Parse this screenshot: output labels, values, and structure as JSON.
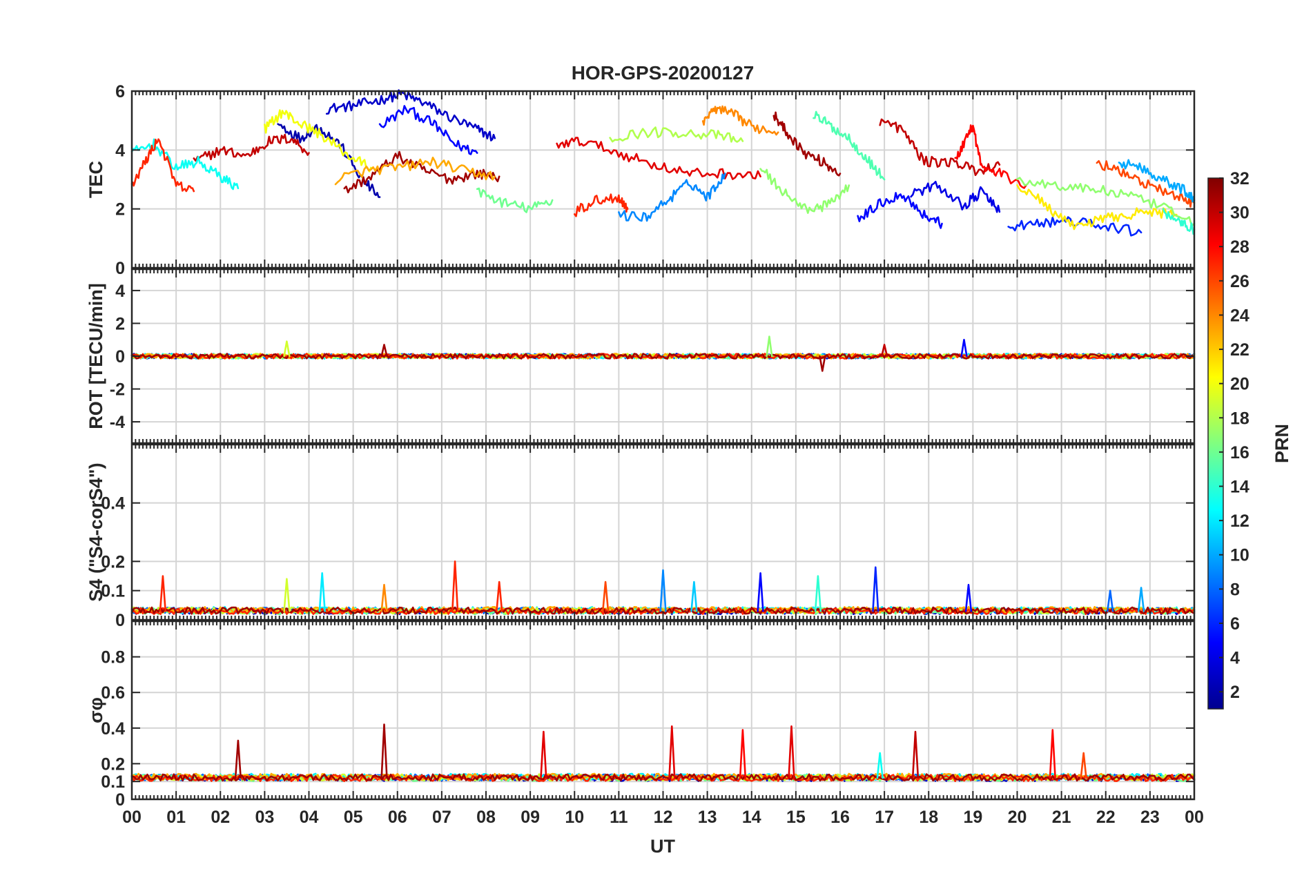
{
  "figure": {
    "title": "HOR-GPS-20200127",
    "xlabel": "UT",
    "x_tick_labels": [
      "00",
      "01",
      "02",
      "03",
      "04",
      "05",
      "06",
      "07",
      "08",
      "09",
      "10",
      "11",
      "12",
      "13",
      "14",
      "15",
      "16",
      "17",
      "18",
      "19",
      "20",
      "21",
      "22",
      "23",
      "00"
    ]
  },
  "colorbar": {
    "label": "PRN",
    "range": [
      1,
      32
    ],
    "ticks": [
      2,
      4,
      6,
      8,
      10,
      12,
      14,
      16,
      18,
      20,
      22,
      24,
      26,
      28,
      30,
      32
    ],
    "colormap": "jet",
    "colors": [
      "#00008f",
      "#0000ff",
      "#0080ff",
      "#00ffff",
      "#80ff80",
      "#ffff00",
      "#ff8000",
      "#ff0000",
      "#800000"
    ]
  },
  "chart_data": [
    {
      "type": "line",
      "ylabel": "TEC",
      "xlim": [
        0,
        24
      ],
      "ylim": [
        0,
        6
      ],
      "yticks": [
        0,
        2,
        4,
        6
      ],
      "series": [
        {
          "prn": 3,
          "x": [
            4.4,
            5.0,
            5.6,
            6.1,
            6.6,
            7.2,
            7.8,
            8.2
          ],
          "y": [
            5.4,
            5.5,
            5.7,
            5.9,
            5.6,
            5.1,
            4.7,
            4.4
          ]
        },
        {
          "prn": 5,
          "x": [
            5.6,
            6.2,
            6.8,
            7.3,
            7.8
          ],
          "y": [
            4.8,
            5.4,
            4.9,
            4.2,
            3.9
          ]
        },
        {
          "prn": 2,
          "x": [
            3.3,
            3.8,
            4.2,
            4.7,
            5.2,
            5.6
          ],
          "y": [
            4.9,
            4.4,
            4.8,
            4.2,
            3.0,
            2.4
          ]
        },
        {
          "prn": 30,
          "x": [
            1.4,
            2.0,
            2.6,
            3.1,
            3.6,
            4.0
          ],
          "y": [
            3.6,
            4.0,
            3.8,
            4.3,
            4.4,
            3.9
          ]
        },
        {
          "prn": 31,
          "x": [
            4.8,
            5.4,
            6.0,
            6.6,
            7.2,
            7.8,
            8.3
          ],
          "y": [
            2.6,
            3.1,
            3.8,
            3.3,
            3.0,
            3.2,
            3.1
          ]
        },
        {
          "prn": 20,
          "x": [
            3.0,
            3.4,
            3.8,
            4.3,
            4.9,
            5.4
          ],
          "y": [
            4.7,
            5.3,
            4.9,
            4.5,
            3.8,
            3.4
          ]
        },
        {
          "prn": 13,
          "x": [
            0.0,
            0.5,
            1.0,
            1.5,
            2.0,
            2.4
          ],
          "y": [
            3.9,
            4.2,
            3.4,
            3.6,
            3.1,
            2.7
          ]
        },
        {
          "prn": 23,
          "x": [
            4.6,
            5.3,
            6.0,
            6.8,
            7.5,
            8.2
          ],
          "y": [
            3.0,
            3.3,
            3.4,
            3.6,
            3.3,
            3.1
          ]
        },
        {
          "prn": 16,
          "x": [
            7.8,
            8.4,
            9.0,
            9.5
          ],
          "y": [
            2.6,
            2.2,
            2.0,
            2.3
          ]
        },
        {
          "prn": 27,
          "x": [
            0.0,
            0.3,
            0.6,
            1.0,
            1.4
          ],
          "y": [
            2.8,
            3.6,
            4.4,
            2.8,
            2.6
          ]
        },
        {
          "prn": 29,
          "x": [
            9.6,
            10.2,
            11.0,
            11.8,
            12.6,
            13.4,
            14.2
          ],
          "y": [
            4.2,
            4.3,
            3.9,
            3.5,
            3.2,
            3.2,
            3.1
          ]
        },
        {
          "prn": 24,
          "x": [
            12.9,
            13.2,
            13.6,
            14.0,
            14.6
          ],
          "y": [
            5.0,
            5.4,
            5.2,
            4.8,
            4.6
          ]
        },
        {
          "prn": 18,
          "x": [
            10.8,
            11.6,
            12.4,
            13.2,
            13.8
          ],
          "y": [
            4.4,
            4.6,
            4.6,
            4.5,
            4.3
          ]
        },
        {
          "prn": 9,
          "x": [
            11.0,
            11.6,
            12.1,
            12.6,
            13.0,
            13.4
          ],
          "y": [
            1.8,
            1.7,
            2.3,
            2.9,
            2.4,
            3.2
          ]
        },
        {
          "prn": 27,
          "x": [
            10.0,
            10.5,
            11.0,
            11.2
          ],
          "y": [
            1.9,
            2.3,
            2.4,
            2.0
          ]
        },
        {
          "prn": 31,
          "x": [
            14.5,
            14.8,
            15.2,
            15.6,
            16.0
          ],
          "y": [
            5.2,
            4.6,
            3.9,
            3.6,
            3.2
          ]
        },
        {
          "prn": 15,
          "x": [
            15.4,
            15.8,
            16.2,
            16.6,
            17.0
          ],
          "y": [
            5.2,
            4.8,
            4.4,
            3.7,
            3.0
          ]
        },
        {
          "prn": 17,
          "x": [
            14.2,
            14.7,
            15.2,
            15.7,
            16.2
          ],
          "y": [
            3.4,
            2.6,
            2.0,
            2.1,
            2.8
          ]
        },
        {
          "prn": 30,
          "x": [
            16.9,
            17.4,
            17.9,
            18.5,
            19.1,
            19.6
          ],
          "y": [
            5.0,
            4.7,
            3.6,
            3.6,
            3.3,
            3.5
          ]
        },
        {
          "prn": 28,
          "x": [
            18.6,
            18.9,
            19.0,
            19.2,
            19.6,
            20.2
          ],
          "y": [
            3.6,
            4.6,
            4.8,
            3.4,
            3.2,
            2.8
          ]
        },
        {
          "prn": 5,
          "x": [
            16.4,
            16.9,
            17.4,
            17.9,
            18.3
          ],
          "y": [
            1.6,
            2.2,
            2.5,
            1.8,
            1.5
          ]
        },
        {
          "prn": 4,
          "x": [
            17.6,
            18.2,
            18.8,
            19.2,
            19.6
          ],
          "y": [
            2.5,
            2.8,
            2.1,
            2.6,
            1.9
          ]
        },
        {
          "prn": 6,
          "x": [
            19.8,
            20.5,
            21.2,
            22.0,
            22.8
          ],
          "y": [
            1.4,
            1.5,
            1.6,
            1.4,
            1.2
          ]
        },
        {
          "prn": 21,
          "x": [
            20.0,
            20.6,
            21.2,
            21.8,
            22.4,
            23.0,
            23.6
          ],
          "y": [
            2.8,
            2.2,
            1.4,
            1.6,
            1.8,
            1.9,
            1.8
          ]
        },
        {
          "prn": 17,
          "x": [
            20.0,
            20.8,
            21.6,
            22.4,
            23.2,
            24.0
          ],
          "y": [
            3.0,
            2.8,
            2.7,
            2.5,
            2.1,
            1.5
          ]
        },
        {
          "prn": 26,
          "x": [
            21.8,
            22.4,
            23.0,
            23.6,
            24.0
          ],
          "y": [
            3.6,
            3.2,
            2.8,
            2.4,
            2.2
          ]
        },
        {
          "prn": 10,
          "x": [
            22.3,
            22.8,
            23.3,
            23.8,
            24.0
          ],
          "y": [
            3.6,
            3.4,
            3.0,
            2.6,
            2.3
          ]
        },
        {
          "prn": 14,
          "x": [
            23.3,
            23.7,
            24.0
          ],
          "y": [
            1.9,
            1.6,
            1.3
          ]
        }
      ]
    },
    {
      "type": "line",
      "ylabel": "ROT [TECU/min]",
      "xlim": [
        0,
        24
      ],
      "ylim": [
        -5.3,
        5.3
      ],
      "yticks": [
        -4,
        -2,
        0,
        2,
        4
      ],
      "noise_band": 0.15,
      "spikes": [
        {
          "prn": 19,
          "x": 3.5,
          "y": 0.9
        },
        {
          "prn": 31,
          "x": 5.7,
          "y": 0.7
        },
        {
          "prn": 17,
          "x": 14.4,
          "y": 1.2
        },
        {
          "prn": 31,
          "x": 15.6,
          "y": -0.9
        },
        {
          "prn": 30,
          "x": 17.0,
          "y": 0.7
        },
        {
          "prn": 5,
          "x": 18.8,
          "y": 1.0
        }
      ]
    },
    {
      "type": "line",
      "ylabel": "S4 (\"S4-corS4\")",
      "xlim": [
        0,
        24
      ],
      "ylim": [
        0,
        0.6
      ],
      "yticks": [
        0,
        0.1,
        0.2,
        0.4
      ],
      "baseline": 0.03,
      "spikes": [
        {
          "prn": 27,
          "x": 0.7,
          "y": 0.15
        },
        {
          "prn": 19,
          "x": 3.5,
          "y": 0.14
        },
        {
          "prn": 12,
          "x": 4.3,
          "y": 0.16
        },
        {
          "prn": 24,
          "x": 5.7,
          "y": 0.12
        },
        {
          "prn": 27,
          "x": 7.3,
          "y": 0.2
        },
        {
          "prn": 27,
          "x": 8.3,
          "y": 0.13
        },
        {
          "prn": 26,
          "x": 10.7,
          "y": 0.13
        },
        {
          "prn": 9,
          "x": 12.0,
          "y": 0.17
        },
        {
          "prn": 11,
          "x": 12.7,
          "y": 0.13
        },
        {
          "prn": 5,
          "x": 14.2,
          "y": 0.16
        },
        {
          "prn": 14,
          "x": 15.5,
          "y": 0.15
        },
        {
          "prn": 6,
          "x": 16.8,
          "y": 0.18
        },
        {
          "prn": 5,
          "x": 18.9,
          "y": 0.12
        },
        {
          "prn": 8,
          "x": 22.1,
          "y": 0.1
        },
        {
          "prn": 10,
          "x": 22.8,
          "y": 0.11
        }
      ]
    },
    {
      "type": "line",
      "ylabel": "σφ",
      "xlim": [
        0,
        24
      ],
      "ylim": [
        0,
        1
      ],
      "yticks": [
        0,
        0.1,
        0.2,
        0.4,
        0.6,
        0.8
      ],
      "baseline": 0.12,
      "spikes": [
        {
          "prn": 31,
          "x": 2.4,
          "y": 0.33
        },
        {
          "prn": 31,
          "x": 5.7,
          "y": 0.42
        },
        {
          "prn": 29,
          "x": 9.3,
          "y": 0.38
        },
        {
          "prn": 29,
          "x": 12.2,
          "y": 0.41
        },
        {
          "prn": 28,
          "x": 13.8,
          "y": 0.39
        },
        {
          "prn": 29,
          "x": 14.9,
          "y": 0.41
        },
        {
          "prn": 13,
          "x": 16.9,
          "y": 0.26
        },
        {
          "prn": 30,
          "x": 17.7,
          "y": 0.38
        },
        {
          "prn": 28,
          "x": 20.8,
          "y": 0.39
        },
        {
          "prn": 26,
          "x": 21.5,
          "y": 0.26
        }
      ]
    }
  ]
}
